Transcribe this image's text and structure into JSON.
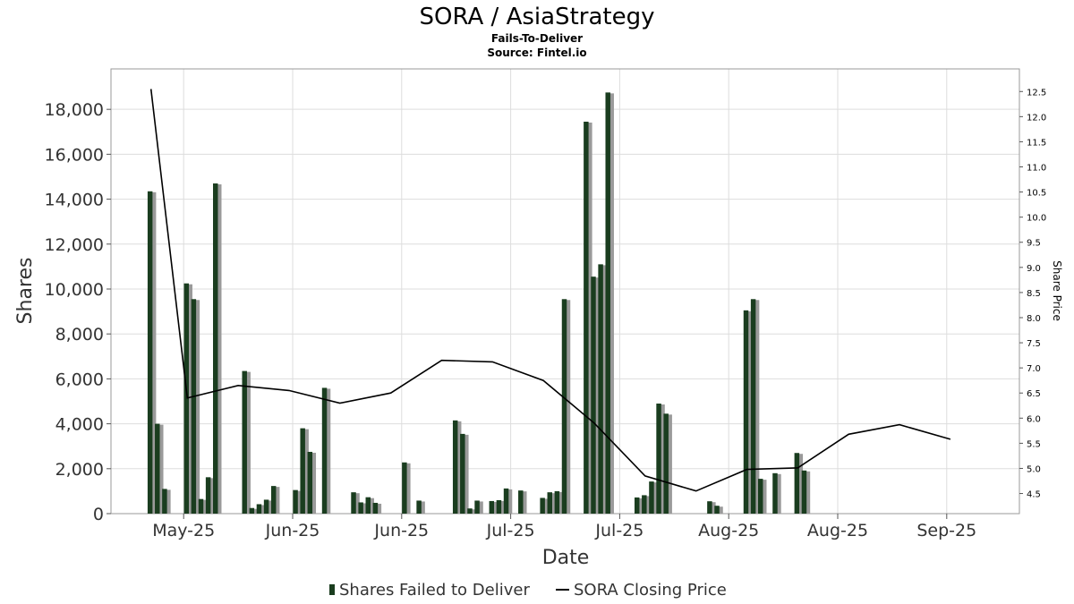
{
  "chart_data": {
    "type": "bar",
    "title": "SORA / AsiaStrategy",
    "subtitle": "Fails-To-Deliver",
    "source": "Source: Fintel.io",
    "xlabel": "Date",
    "ylabel": "Shares",
    "y2label": "Share Price",
    "ylim": [
      0,
      19800
    ],
    "y2lim": [
      4.1,
      12.95
    ],
    "yticks": [
      {
        "v": 0,
        "label": "0"
      },
      {
        "v": 2000,
        "label": "2,000"
      },
      {
        "v": 4000,
        "label": "4,000"
      },
      {
        "v": 6000,
        "label": "6,000"
      },
      {
        "v": 8000,
        "label": "8,000"
      },
      {
        "v": 10000,
        "label": "10,000"
      },
      {
        "v": 12000,
        "label": "12,000"
      },
      {
        "v": 14000,
        "label": "14,000"
      },
      {
        "v": 16000,
        "label": "16,000"
      },
      {
        "v": 18000,
        "label": "18,000"
      }
    ],
    "y2ticks": [
      {
        "v": 4.5,
        "label": "4.5"
      },
      {
        "v": 5.0,
        "label": "5.0"
      },
      {
        "v": 5.5,
        "label": "5.5"
      },
      {
        "v": 6.0,
        "label": "6.0"
      },
      {
        "v": 6.5,
        "label": "6.5"
      },
      {
        "v": 7.0,
        "label": "7.0"
      },
      {
        "v": 7.5,
        "label": "7.5"
      },
      {
        "v": 8.0,
        "label": "8.0"
      },
      {
        "v": 8.5,
        "label": "8.5"
      },
      {
        "v": 9.0,
        "label": "9.0"
      },
      {
        "v": 9.5,
        "label": "9.5"
      },
      {
        "v": 10.0,
        "label": "10.0"
      },
      {
        "v": 10.5,
        "label": "10.5"
      },
      {
        "v": 11.0,
        "label": "11.0"
      },
      {
        "v": 11.5,
        "label": "11.5"
      },
      {
        "v": 12.0,
        "label": "12.0"
      },
      {
        "v": 12.5,
        "label": "12.5"
      }
    ],
    "xticks": [
      {
        "x": 11.5,
        "label": "May-25"
      },
      {
        "x": 26.5,
        "label": "Jun-25"
      },
      {
        "x": 41.5,
        "label": "Jun-25"
      },
      {
        "x": 56.5,
        "label": "Jul-25"
      },
      {
        "x": 71.5,
        "label": "Jul-25"
      },
      {
        "x": 86.5,
        "label": "Aug-25"
      },
      {
        "x": 101.5,
        "label": "Aug-25"
      },
      {
        "x": 116.5,
        "label": "Sep-25"
      }
    ],
    "xlim": [
      1.5,
      126.5
    ],
    "series": [
      {
        "name": "Shares Failed to Deliver",
        "color": "#1a3d1f",
        "points": [
          [
            7,
            14350
          ],
          [
            8,
            4000
          ],
          [
            9,
            1100
          ],
          [
            12,
            10250
          ],
          [
            13,
            9550
          ],
          [
            14,
            650
          ],
          [
            15,
            1620
          ],
          [
            16,
            14700
          ],
          [
            20,
            6350
          ],
          [
            21,
            250
          ],
          [
            22,
            420
          ],
          [
            23,
            620
          ],
          [
            24,
            1230
          ],
          [
            27,
            1050
          ],
          [
            28,
            3800
          ],
          [
            29,
            2750
          ],
          [
            31,
            5600
          ],
          [
            35,
            950
          ],
          [
            36,
            500
          ],
          [
            37,
            730
          ],
          [
            38,
            480
          ],
          [
            42,
            2280
          ],
          [
            44,
            580
          ],
          [
            49,
            4150
          ],
          [
            50,
            3550
          ],
          [
            51,
            230
          ],
          [
            52,
            580
          ],
          [
            54,
            560
          ],
          [
            55,
            600
          ],
          [
            56,
            1120
          ],
          [
            58,
            1030
          ],
          [
            61,
            700
          ],
          [
            62,
            950
          ],
          [
            63,
            1000
          ],
          [
            64,
            9550
          ],
          [
            67,
            17450
          ],
          [
            68,
            10550
          ],
          [
            69,
            11100
          ],
          [
            70,
            18750
          ],
          [
            74,
            720
          ],
          [
            75,
            820
          ],
          [
            76,
            1430
          ],
          [
            77,
            4900
          ],
          [
            78,
            4450
          ],
          [
            84,
            550
          ],
          [
            85,
            350
          ],
          [
            89,
            9050
          ],
          [
            90,
            9550
          ],
          [
            91,
            1550
          ],
          [
            93,
            1800
          ],
          [
            96,
            2700
          ],
          [
            97,
            1920
          ]
        ]
      },
      {
        "name": "SORA Closing Price",
        "color": "#000000",
        "points": [
          [
            7,
            12.55
          ],
          [
            12,
            6.4
          ],
          [
            19,
            6.65
          ],
          [
            26,
            6.55
          ],
          [
            33,
            6.3
          ],
          [
            40,
            6.5
          ],
          [
            47,
            7.15
          ],
          [
            54,
            7.12
          ],
          [
            61,
            6.75
          ],
          [
            68,
            5.9
          ],
          [
            75,
            4.85
          ],
          [
            82,
            4.55
          ],
          [
            89,
            4.98
          ],
          [
            96,
            5.01
          ],
          [
            103,
            5.68
          ],
          [
            110,
            5.87
          ],
          [
            117,
            5.58
          ]
        ]
      }
    ],
    "legend": {
      "placement": "bottom",
      "items": [
        "Shares Failed to Deliver",
        "SORA Closing Price"
      ]
    },
    "grid": true
  }
}
